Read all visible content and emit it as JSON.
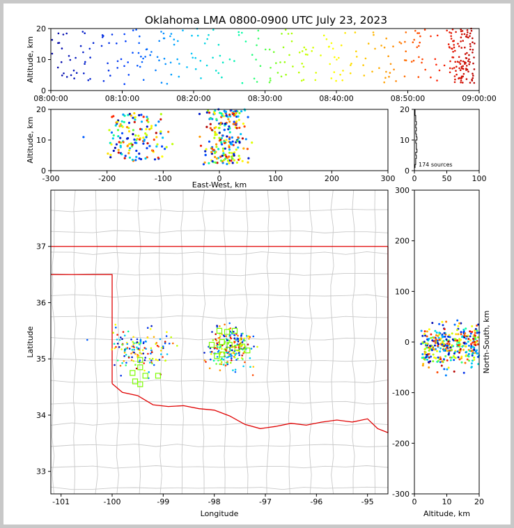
{
  "title": "Oklahoma LMA 0800-0900 UTC July 23, 2023",
  "chart_data": [
    {
      "name": "time-altitude",
      "type": "scatter",
      "xlabel": "",
      "ylabel": "Altitude, km",
      "xlim": [
        "08:00:00",
        "09:00:00"
      ],
      "ylim": [
        0,
        20
      ],
      "xticks": [
        "08:00:00",
        "08:10:00",
        "08:20:00",
        "08:30:00",
        "08:40:00",
        "08:50:00",
        "09:00:00"
      ],
      "yticks": [
        0,
        10,
        20
      ],
      "colormap": "time (blue → red)"
    },
    {
      "name": "eastwest-altitude",
      "type": "scatter",
      "xlabel": "East-West, km",
      "ylabel": "Altitude, km",
      "xlim": [
        -300,
        300
      ],
      "ylim": [
        0,
        20
      ],
      "xticks": [
        -300,
        -200,
        -100,
        0,
        100,
        200,
        300
      ],
      "yticks": [
        0,
        10,
        20
      ]
    },
    {
      "name": "altitude-histogram",
      "type": "line",
      "xlim": [
        0,
        100
      ],
      "ylim": [
        0,
        20
      ],
      "xticks": [
        0,
        50,
        100
      ],
      "yticks": [
        0,
        10,
        20
      ],
      "annotation": "174 sources"
    },
    {
      "name": "plan-view-map",
      "type": "scatter",
      "xlabel": "Longitude",
      "ylabel": "Latitude",
      "xlim": [
        -101.2,
        -94.6
      ],
      "ylim": [
        32.6,
        38.0
      ],
      "xticks": [
        -101,
        -100,
        -99,
        -98,
        -97,
        -96,
        -95
      ],
      "yticks": [
        33,
        34,
        35,
        36,
        37
      ],
      "stations_color": "#7cfc00"
    },
    {
      "name": "altitude-northsouth",
      "type": "scatter",
      "xlabel": "Altitude, km",
      "ylabel": "North-South, km",
      "xlim": [
        0,
        20
      ],
      "ylim": [
        -300,
        300
      ],
      "xticks": [
        0,
        10,
        20
      ],
      "yticks": [
        -300,
        -200,
        -100,
        0,
        100,
        200,
        300
      ]
    }
  ]
}
